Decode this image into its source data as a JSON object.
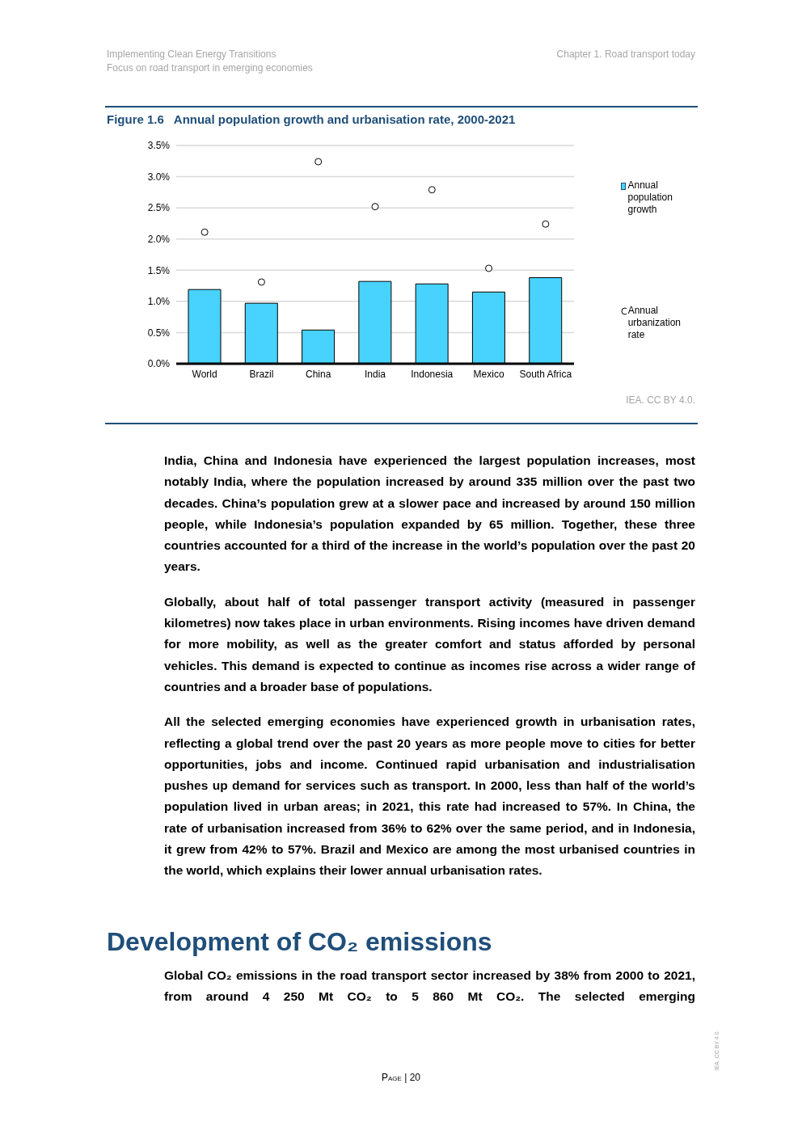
{
  "chart_data": {
    "type": "bar",
    "title": "Figure 1.6   Annual population growth and urbanisation rate, 2000-2021",
    "categories": [
      "World",
      "Brazil",
      "China",
      "India",
      "Indonesia",
      "Mexico",
      "South Africa"
    ],
    "series": [
      {
        "name": "Annual population growth",
        "color": "#47d3fd",
        "values": [
          1.19,
          0.97,
          0.54,
          1.32,
          1.28,
          1.15,
          1.38
        ]
      },
      {
        "name": "Annual urbanization rate",
        "type": "scatter",
        "color": "#000000",
        "values": [
          2.11,
          1.31,
          3.24,
          2.52,
          2.79,
          1.53,
          2.24
        ]
      }
    ],
    "ylim": [
      0,
      3.5
    ],
    "yticks": [
      {
        "value": 0,
        "label": "0.0%"
      },
      {
        "value": 0.5,
        "label": "0.5%"
      },
      {
        "value": 1,
        "label": "1.0%"
      },
      {
        "value": 1.5,
        "label": "1.5%"
      },
      {
        "value": 2,
        "label": "2.0%"
      },
      {
        "value": 2.5,
        "label": "2.5%"
      },
      {
        "value": 3,
        "label": "3.0%"
      },
      {
        "value": 3.5,
        "label": "3.5%"
      }
    ],
    "grid": "y",
    "legend": "right",
    "marker": "circle",
    "annotations": [
      "Implementing Clean Energy Transitions",
      "Focus on road transport in emerging economies",
      "Chapter 1. Road transport today",
      "IEA. CC BY 4.0.",
      "India, China and Indonesia have experienced the largest population increases, most notably India, where the population increased by around 335 million over the past two decades. China’s population grew at a slower pace and increased by around 150 million people, while Indonesia’s population expanded by 65 million. Together, these three countries accounted for a third of the increase in the world’s population over the past 20 years.",
      "Globally, about half of total passenger transport activity (measured in passenger kilometres) now takes place in urban environments. Rising incomes have driven demand for more mobility, as well as the greater comfort and status afforded by personal vehicles. This demand is expected to continue as incomes rise across a wider range of countries and a broader base of populations.",
      "All the selected emerging economies have experienced growth in urbanisation rates, reflecting a global trend over the past 20 years as more people move to cities for better opportunities, jobs and income. Continued rapid urbanisation and industrialisation pushes up demand for services such as transport. In 2000, less than half of the world’s population lived in urban areas; in 2021, this rate had increased to 57%. In China, the rate of urbanisation increased from 36% to 62% over the same period, and in Indonesia, it grew from 42% to 57%. Brazil and Mexico are among the most urbanised countries in the world, which explains their lower annual urbanisation rates.",
      "Development of CO₂ emissions",
      "Global CO₂ emissions in the road transport sector increased by 38% from 2000 to 2021, from around 4 250 Mt CO₂ to 5 860 Mt CO₂. The selected emerging",
      "Page | 20",
      "IEA. CC BY 4.0."
    ]
  }
}
